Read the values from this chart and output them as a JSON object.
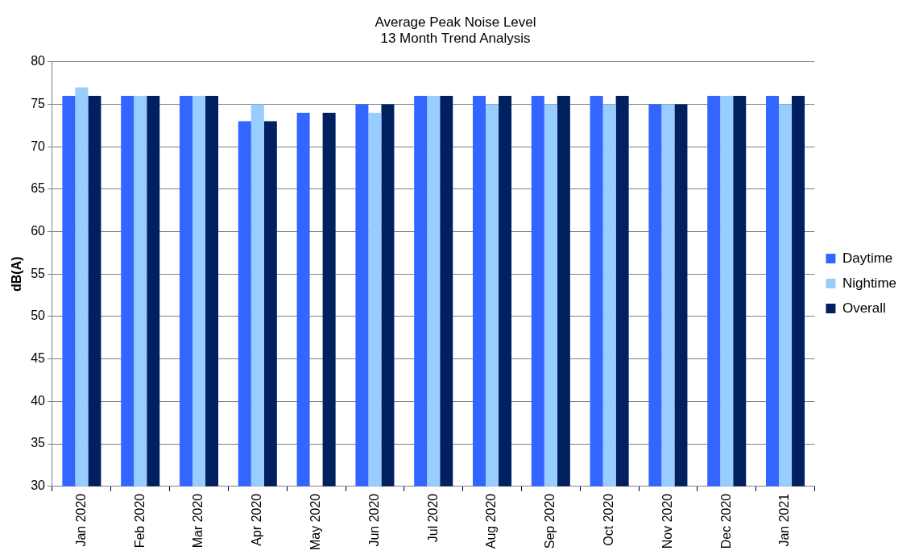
{
  "chart_data": {
    "type": "bar",
    "title": [
      "Average Peak Noise Level",
      "13 Month Trend Analysis"
    ],
    "ylabel": "dB(A)",
    "categories": [
      "Jan 2020",
      "Feb 2020",
      "Mar 2020",
      "Apr 2020",
      "May 2020",
      "Jun 2020",
      "Jul 2020",
      "Aug 2020",
      "Sep 2020",
      "Oct 2020",
      "Nov 2020",
      "Dec 2020",
      "Jan 2021"
    ],
    "series": [
      {
        "name": "Daytime",
        "color": "#3366ff",
        "values": [
          76,
          76,
          76,
          73,
          74,
          75,
          76,
          76,
          76,
          76,
          75,
          76,
          76
        ]
      },
      {
        "name": "Nightime",
        "color": "#99ccff",
        "values": [
          77,
          76,
          76,
          75,
          null,
          74,
          76,
          75,
          75,
          75,
          75,
          76,
          75
        ]
      },
      {
        "name": "Overall",
        "color": "#002060",
        "values": [
          76,
          76,
          76,
          73,
          74,
          75,
          76,
          76,
          76,
          76,
          75,
          76,
          76
        ]
      }
    ],
    "ylim": [
      30,
      80
    ],
    "yticks": [
      30,
      35,
      40,
      45,
      50,
      55,
      60,
      65,
      70,
      75,
      80
    ],
    "grid": "y",
    "legend": "right"
  }
}
